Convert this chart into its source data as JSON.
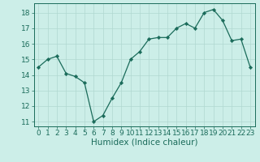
{
  "x": [
    0,
    1,
    2,
    3,
    4,
    5,
    6,
    7,
    8,
    9,
    10,
    11,
    12,
    13,
    14,
    15,
    16,
    17,
    18,
    19,
    20,
    21,
    22,
    23
  ],
  "y": [
    14.5,
    15.0,
    15.2,
    14.1,
    13.9,
    13.5,
    11.0,
    11.4,
    12.5,
    13.5,
    15.0,
    15.5,
    16.3,
    16.4,
    16.4,
    17.0,
    17.3,
    17.0,
    18.0,
    18.2,
    17.5,
    16.2,
    16.3,
    14.5
  ],
  "line_color": "#1a6b5a",
  "marker": "D",
  "marker_size": 2.2,
  "bg_color": "#cceee8",
  "grid_color": "#b0d8d0",
  "xlabel": "Humidex (Indice chaleur)",
  "xlabel_fontsize": 7.5,
  "tick_fontsize": 6.5,
  "ylim": [
    10.7,
    18.6
  ],
  "yticks": [
    11,
    12,
    13,
    14,
    15,
    16,
    17,
    18
  ],
  "xlim": [
    -0.5,
    23.5
  ],
  "xticks": [
    0,
    1,
    2,
    3,
    4,
    5,
    6,
    7,
    8,
    9,
    10,
    11,
    12,
    13,
    14,
    15,
    16,
    17,
    18,
    19,
    20,
    21,
    22,
    23
  ]
}
